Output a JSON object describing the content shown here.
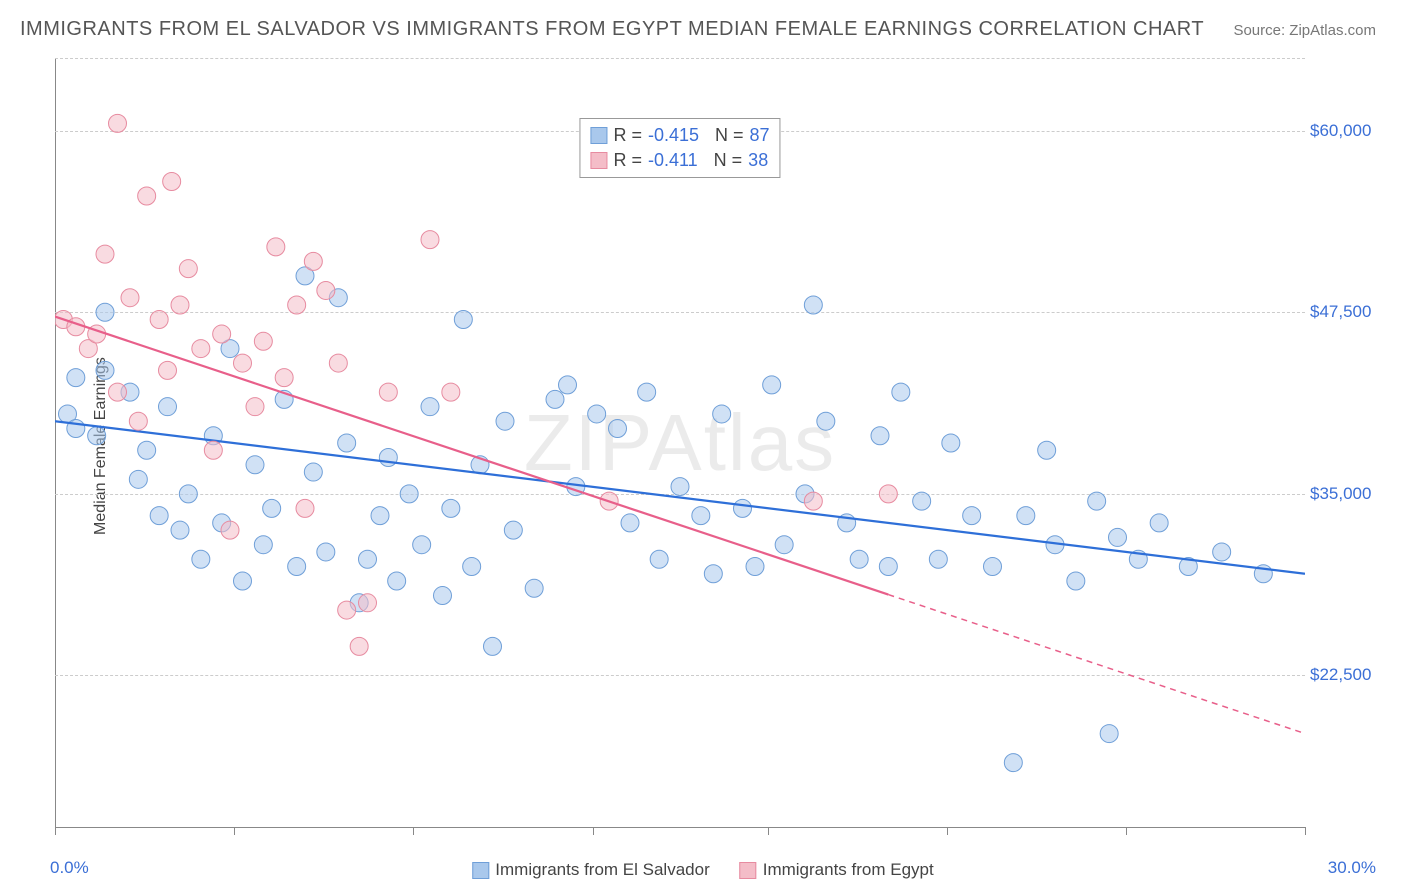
{
  "title": "IMMIGRANTS FROM EL SALVADOR VS IMMIGRANTS FROM EGYPT MEDIAN FEMALE EARNINGS CORRELATION CHART",
  "source_label": "Source: ZipAtlas.com",
  "ylabel": "Median Female Earnings",
  "watermark": "ZIPAtlas",
  "chart": {
    "type": "scatter",
    "xlim": [
      0,
      30
    ],
    "ylim": [
      12000,
      65000
    ],
    "x_min_label": "0.0%",
    "x_max_label": "30.0%",
    "x_tick_positions": [
      0,
      4.3,
      8.6,
      12.9,
      17.1,
      21.4,
      25.7,
      30
    ],
    "y_ticks": [
      22500,
      35000,
      47500,
      60000
    ],
    "y_tick_labels": [
      "$22,500",
      "$35,000",
      "$47,500",
      "$60,000"
    ],
    "grid_color": "#cccccc",
    "axis_color": "#888888",
    "tick_label_color": "#3b6fd6",
    "tick_label_fontsize": 17,
    "marker_radius": 9,
    "marker_opacity": 0.55,
    "line_width": 2.2,
    "series": [
      {
        "name": "Immigrants from El Salvador",
        "fill_color": "#a9c8ec",
        "stroke_color": "#6f9fd8",
        "line_color": "#2e6fd8",
        "R": "-0.415",
        "N": "87",
        "trend": {
          "x1": 0,
          "y1": 40000,
          "x2": 30,
          "y2": 29500,
          "solid_until_x": 30
        },
        "points": [
          [
            0.3,
            40500
          ],
          [
            0.5,
            39500
          ],
          [
            0.5,
            43000
          ],
          [
            1.0,
            39000
          ],
          [
            1.2,
            47500
          ],
          [
            1.2,
            43500
          ],
          [
            1.8,
            42000
          ],
          [
            2.0,
            36000
          ],
          [
            2.2,
            38000
          ],
          [
            2.5,
            33500
          ],
          [
            2.7,
            41000
          ],
          [
            3.0,
            32500
          ],
          [
            3.2,
            35000
          ],
          [
            3.5,
            30500
          ],
          [
            3.8,
            39000
          ],
          [
            4.0,
            33000
          ],
          [
            4.2,
            45000
          ],
          [
            4.5,
            29000
          ],
          [
            4.8,
            37000
          ],
          [
            5.0,
            31500
          ],
          [
            5.2,
            34000
          ],
          [
            5.5,
            41500
          ],
          [
            5.8,
            30000
          ],
          [
            6.0,
            50000
          ],
          [
            6.2,
            36500
          ],
          [
            6.5,
            31000
          ],
          [
            6.8,
            48500
          ],
          [
            7.0,
            38500
          ],
          [
            7.3,
            27500
          ],
          [
            7.5,
            30500
          ],
          [
            7.8,
            33500
          ],
          [
            8.0,
            37500
          ],
          [
            8.2,
            29000
          ],
          [
            8.5,
            35000
          ],
          [
            8.8,
            31500
          ],
          [
            9.0,
            41000
          ],
          [
            9.3,
            28000
          ],
          [
            9.5,
            34000
          ],
          [
            9.8,
            47000
          ],
          [
            10.0,
            30000
          ],
          [
            10.2,
            37000
          ],
          [
            10.5,
            24500
          ],
          [
            10.8,
            40000
          ],
          [
            11.0,
            32500
          ],
          [
            11.5,
            28500
          ],
          [
            12.0,
            41500
          ],
          [
            12.3,
            42500
          ],
          [
            12.5,
            35500
          ],
          [
            13.0,
            40500
          ],
          [
            13.5,
            39500
          ],
          [
            13.8,
            33000
          ],
          [
            14.2,
            42000
          ],
          [
            14.5,
            30500
          ],
          [
            15.0,
            35500
          ],
          [
            15.5,
            33500
          ],
          [
            15.8,
            29500
          ],
          [
            16.0,
            40500
          ],
          [
            16.5,
            34000
          ],
          [
            16.8,
            30000
          ],
          [
            17.2,
            42500
          ],
          [
            17.5,
            31500
          ],
          [
            18.0,
            35000
          ],
          [
            18.2,
            48000
          ],
          [
            18.5,
            40000
          ],
          [
            19.0,
            33000
          ],
          [
            19.3,
            30500
          ],
          [
            19.8,
            39000
          ],
          [
            20.0,
            30000
          ],
          [
            20.3,
            42000
          ],
          [
            20.8,
            34500
          ],
          [
            21.2,
            30500
          ],
          [
            21.5,
            38500
          ],
          [
            22.0,
            33500
          ],
          [
            22.5,
            30000
          ],
          [
            23.0,
            16500
          ],
          [
            23.3,
            33500
          ],
          [
            23.8,
            38000
          ],
          [
            24.0,
            31500
          ],
          [
            24.5,
            29000
          ],
          [
            25.0,
            34500
          ],
          [
            25.3,
            18500
          ],
          [
            25.5,
            32000
          ],
          [
            26.0,
            30500
          ],
          [
            26.5,
            33000
          ],
          [
            27.2,
            30000
          ],
          [
            28.0,
            31000
          ],
          [
            29.0,
            29500
          ]
        ]
      },
      {
        "name": "Immigrants from Egypt",
        "fill_color": "#f4bdc8",
        "stroke_color": "#e78ba0",
        "line_color": "#e85f8a",
        "R": "-0.411",
        "N": "38",
        "trend": {
          "x1": 0,
          "y1": 47200,
          "x2": 30,
          "y2": 18500,
          "solid_until_x": 20
        },
        "points": [
          [
            0.2,
            47000
          ],
          [
            0.5,
            46500
          ],
          [
            0.8,
            45000
          ],
          [
            1.0,
            46000
          ],
          [
            1.2,
            51500
          ],
          [
            1.5,
            42000
          ],
          [
            1.5,
            60500
          ],
          [
            1.8,
            48500
          ],
          [
            2.0,
            40000
          ],
          [
            2.2,
            55500
          ],
          [
            2.5,
            47000
          ],
          [
            2.7,
            43500
          ],
          [
            2.8,
            56500
          ],
          [
            3.0,
            48000
          ],
          [
            3.2,
            50500
          ],
          [
            3.5,
            45000
          ],
          [
            3.8,
            38000
          ],
          [
            4.0,
            46000
          ],
          [
            4.2,
            32500
          ],
          [
            4.5,
            44000
          ],
          [
            4.8,
            41000
          ],
          [
            5.0,
            45500
          ],
          [
            5.3,
            52000
          ],
          [
            5.5,
            43000
          ],
          [
            5.8,
            48000
          ],
          [
            6.0,
            34000
          ],
          [
            6.2,
            51000
          ],
          [
            6.5,
            49000
          ],
          [
            6.8,
            44000
          ],
          [
            7.0,
            27000
          ],
          [
            7.3,
            24500
          ],
          [
            7.5,
            27500
          ],
          [
            8.0,
            42000
          ],
          [
            9.0,
            52500
          ],
          [
            9.5,
            42000
          ],
          [
            13.3,
            34500
          ],
          [
            18.2,
            34500
          ],
          [
            20.0,
            35000
          ]
        ]
      }
    ]
  },
  "legend_bottom": [
    {
      "swatch_fill": "#a9c8ec",
      "swatch_border": "#6f9fd8",
      "label": "Immigrants from El Salvador"
    },
    {
      "swatch_fill": "#f4bdc8",
      "swatch_border": "#e78ba0",
      "label": "Immigrants from Egypt"
    }
  ]
}
